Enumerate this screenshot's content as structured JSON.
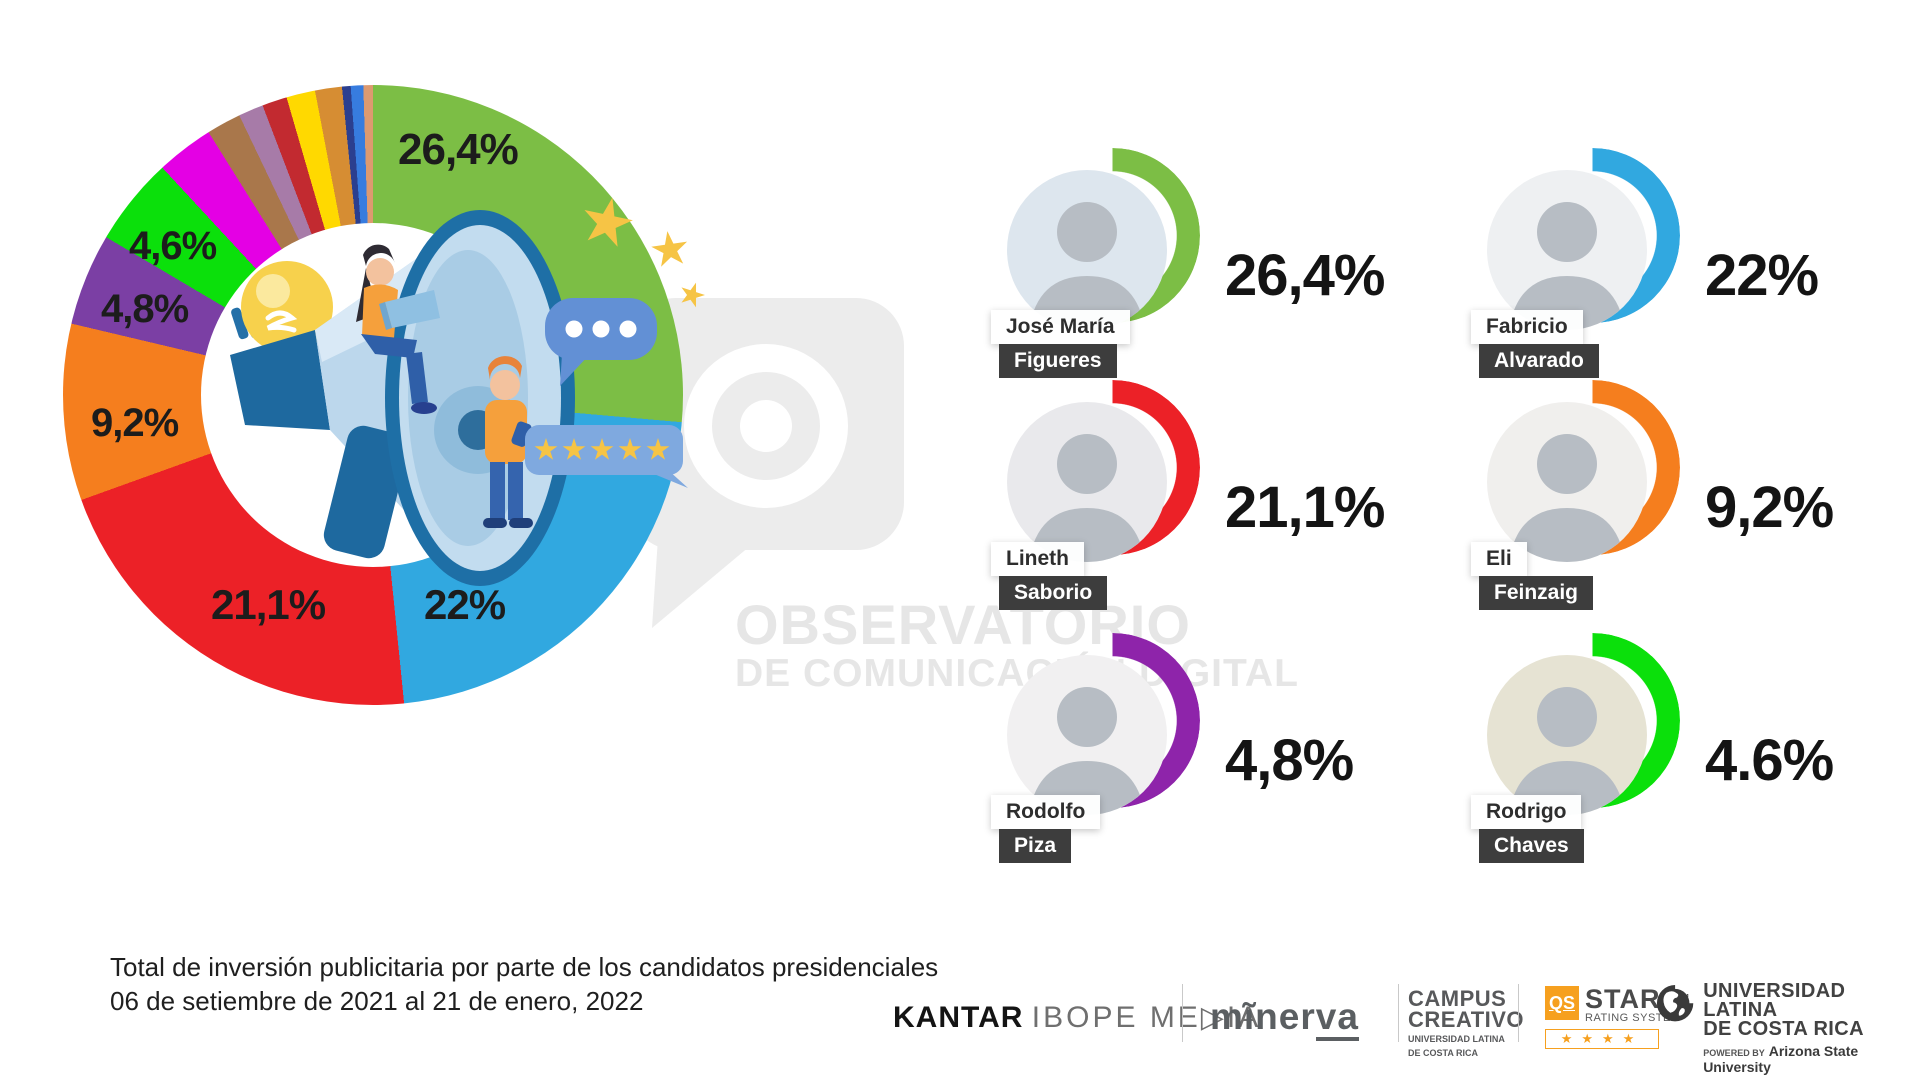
{
  "caption": {
    "line1": "Total de inversión publicitaria por parte de los candidatos presidenciales",
    "line2": "06 de setiembre de 2021 al 21 de enero, 2022"
  },
  "watermark": {
    "line1": "OBSERVATORIO",
    "line2": "DE COMUNICACIÓN DIGITAL"
  },
  "chart_data": {
    "type": "pie",
    "donut": true,
    "title": "Total de inversión publicitaria por parte de los candidatos presidenciales",
    "subtitle": "06 de setiembre de 2021 al 21 de enero, 2022",
    "legend_position": "none",
    "segments": [
      {
        "label": "José María Figueres",
        "value": 26.4,
        "display": "26,4%",
        "color": "#7CBE45"
      },
      {
        "label": "Fabricio Alvarado",
        "value": 22.0,
        "display": "22%",
        "color": "#31A8E0"
      },
      {
        "label": "Lineth Saborio",
        "value": 21.1,
        "display": "21,1%",
        "color": "#EC2127"
      },
      {
        "label": "Eli Feinzaig",
        "value": 9.2,
        "display": "9,2%",
        "color": "#F57E1E"
      },
      {
        "label": "Rodolfo Piza",
        "value": 4.8,
        "display": "4,8%",
        "color": "#7B3FA4"
      },
      {
        "label": "Rodrigo Chaves",
        "value": 4.6,
        "display": "4,6%",
        "color": "#0BE00B"
      },
      {
        "label": null,
        "value": 3.0,
        "display": null,
        "color": "#E400E4"
      },
      {
        "label": null,
        "value": 1.8,
        "display": null,
        "color": "#A9774B"
      },
      {
        "label": null,
        "value": 1.3,
        "display": null,
        "color": "#A77BA8"
      },
      {
        "label": null,
        "value": 1.3,
        "display": null,
        "color": "#C22A30"
      },
      {
        "label": null,
        "value": 1.5,
        "display": null,
        "color": "#FFD900"
      },
      {
        "label": null,
        "value": 1.4,
        "display": null,
        "color": "#D68D33"
      },
      {
        "label": null,
        "value": 0.45,
        "display": null,
        "color": "#2B3F8F"
      },
      {
        "label": null,
        "value": 0.65,
        "display": null,
        "color": "#377CDF"
      },
      {
        "label": null,
        "value": 0.5,
        "display": null,
        "color": "#DD9A70"
      }
    ]
  },
  "candidates": [
    {
      "first": "José María",
      "last": "Figueres",
      "pct": "26,4%",
      "color": "#7CBE45",
      "arc_deg": 235,
      "photo_bg": "#dde6ee"
    },
    {
      "first": "Fabricio",
      "last": "Alvarado",
      "pct": "22%",
      "color": "#31A8E0",
      "arc_deg": 215,
      "photo_bg": "#eef0f2"
    },
    {
      "first": "Lineth",
      "last": "Saborio",
      "pct": "21,1%",
      "color": "#EC2127",
      "arc_deg": 210,
      "photo_bg": "#e9e9ec"
    },
    {
      "first": "Eli",
      "last": "Feinzaig",
      "pct": "9,2%",
      "color": "#F57E1E",
      "arc_deg": 200,
      "photo_bg": "#f0efed"
    },
    {
      "first": "Rodolfo",
      "last": "Piza",
      "pct": "4,8%",
      "color": "#8E24AA",
      "arc_deg": 190,
      "photo_bg": "#f1f0f1"
    },
    {
      "first": "Rodrigo",
      "last": "Chaves",
      "pct": "4.6%",
      "color": "#0BE00B",
      "arc_deg": 175,
      "photo_bg": "#e6e3d3"
    }
  ],
  "footer": {
    "kantar_brand": "KANTAR",
    "kantar_rest": "IBOPE ME▷IA",
    "minerva_pre": "mĩner",
    "minerva_underlined": "va",
    "campus_line1": "CAMPUS",
    "campus_line2": "CREATIVO",
    "campus_line3": "UNIVERSIDAD LATINA",
    "campus_line4": "DE COSTA RICA",
    "qs_badge": "QS",
    "qs_name": "STARS",
    "qs_tm": "™",
    "qs_sub": "RATING SYSTEM",
    "qs_stars": "★★★★",
    "ulatina_line1": "UNIVERSIDAD LATINA",
    "ulatina_line2": "DE COSTA RICA",
    "ulatina_powered": "POWERED BY",
    "ulatina_powered_brand": "Arizona State University"
  }
}
